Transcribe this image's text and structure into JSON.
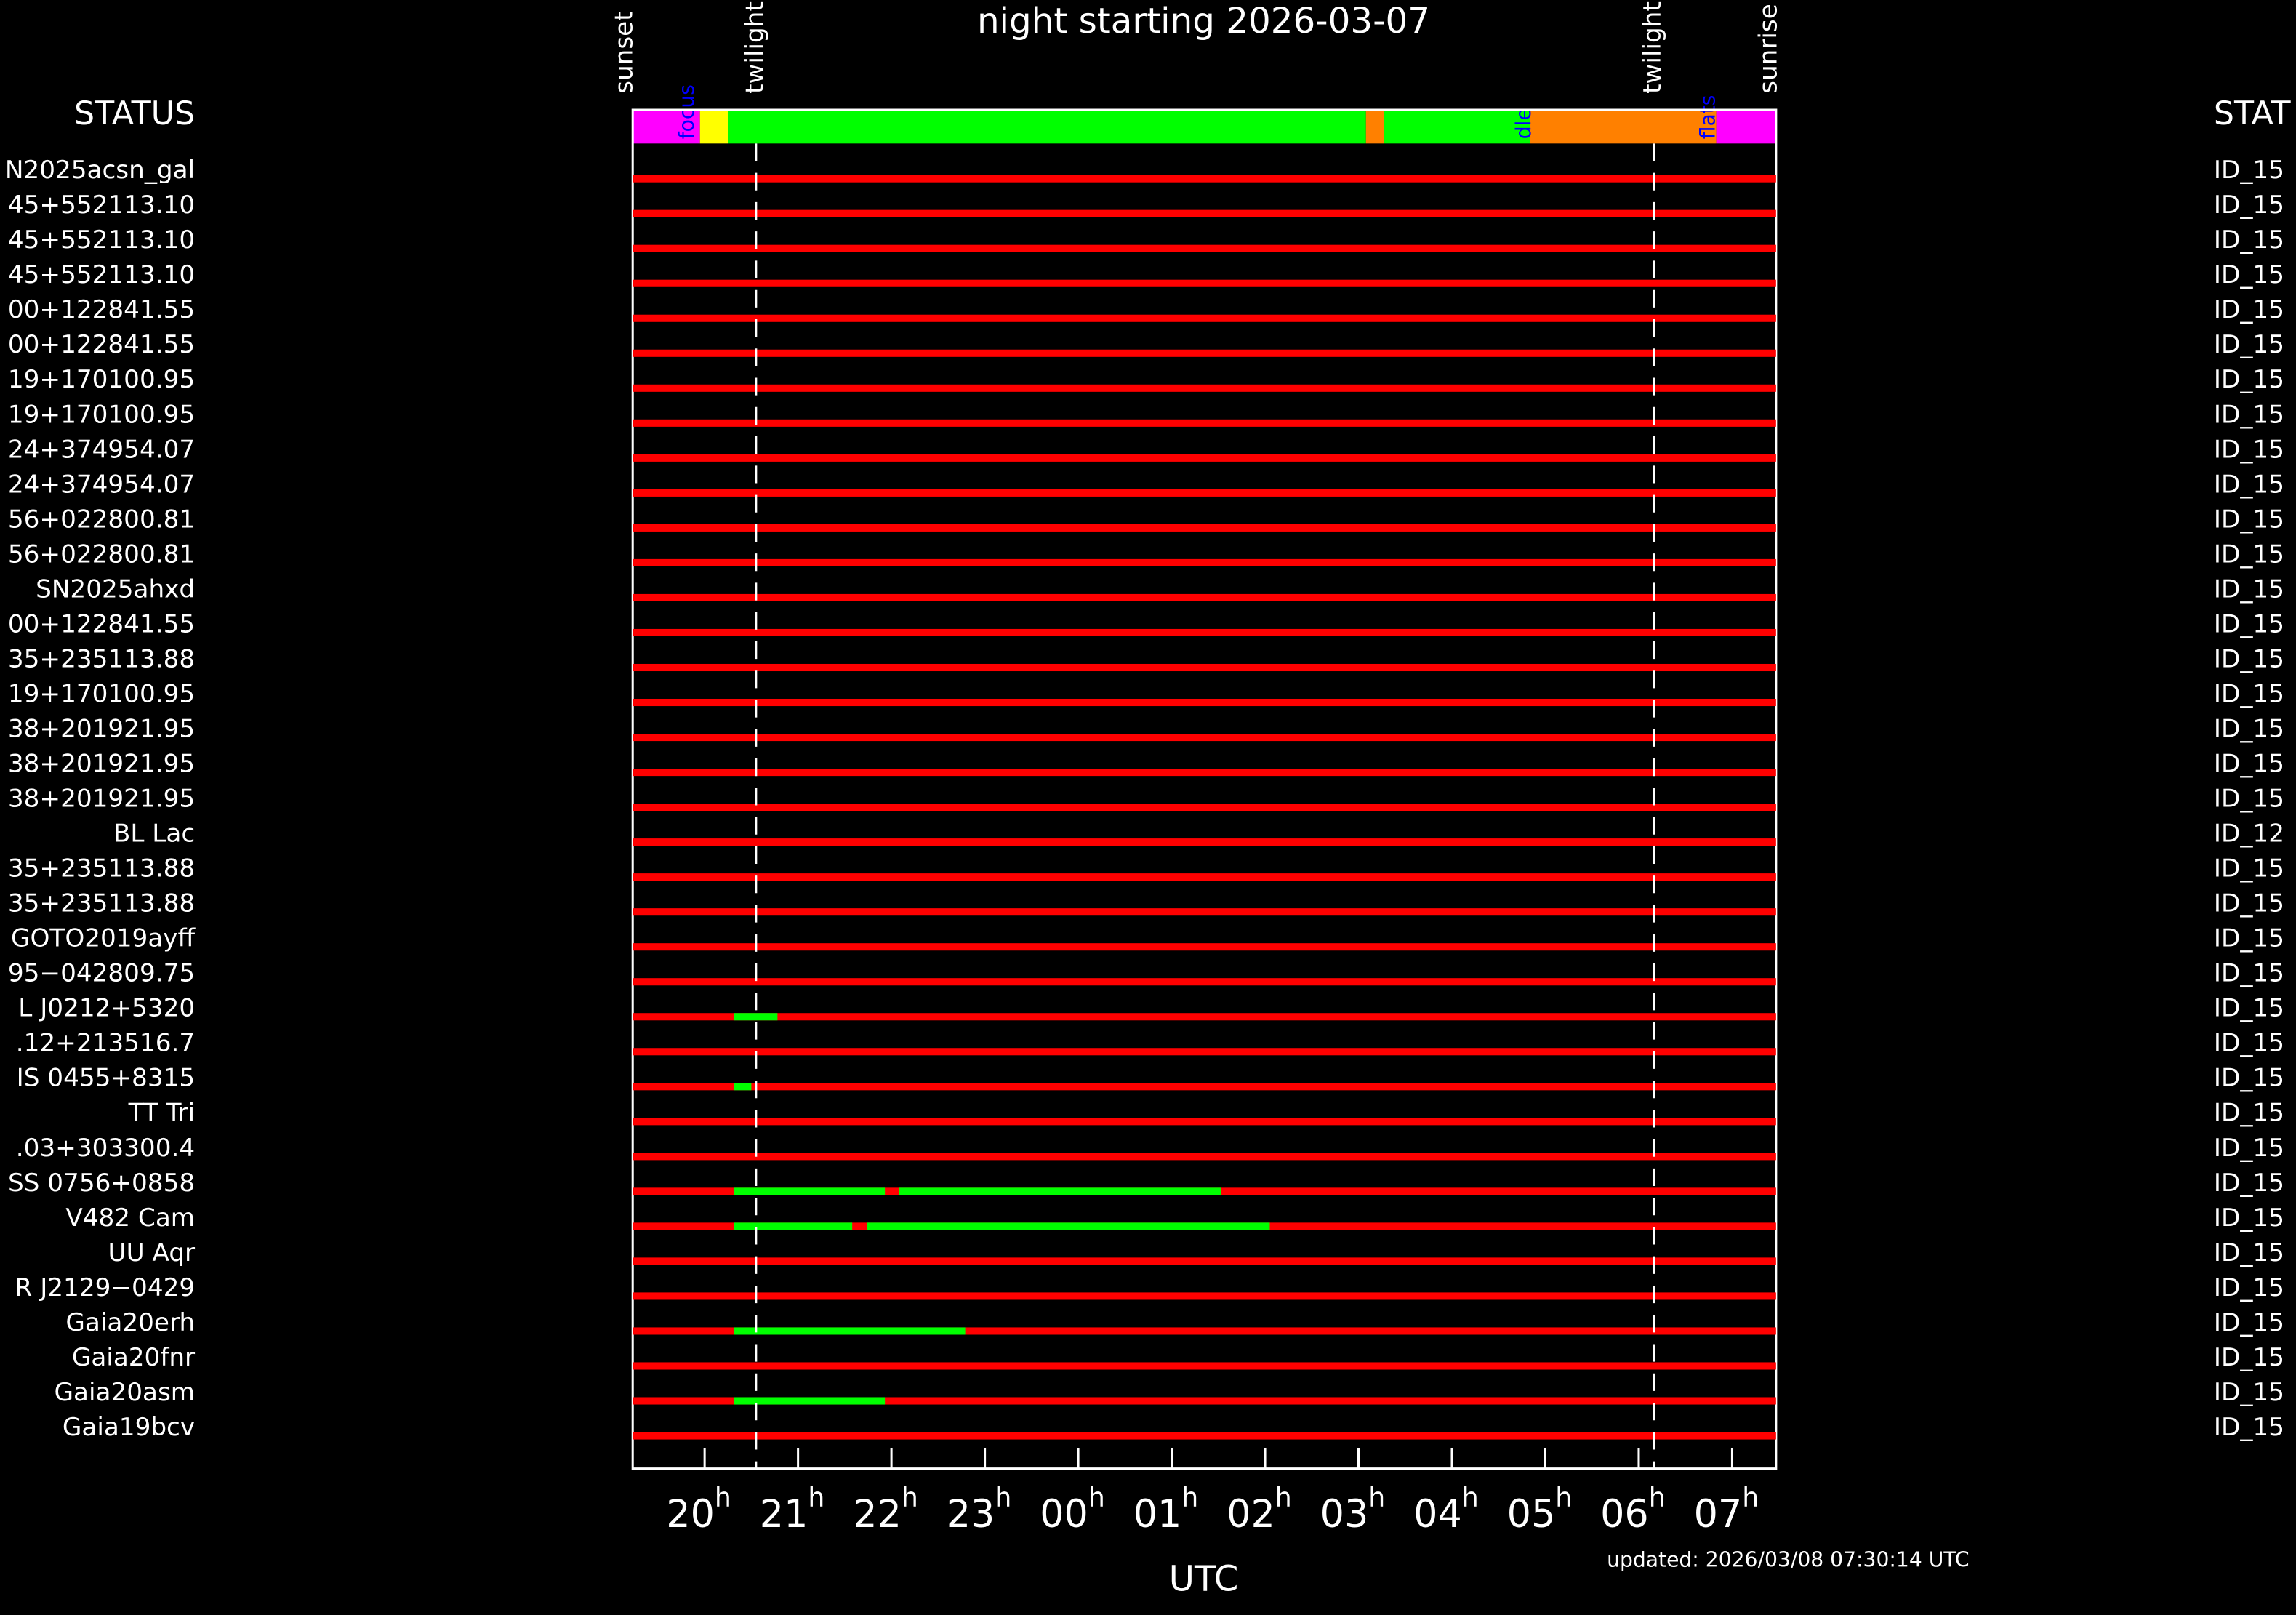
{
  "chart_data": {
    "type": "gantt",
    "title": "night starting 2026-03-07",
    "x_label": "UTC",
    "footer": "updated: 2026/03/08 07:30:14 UTC",
    "status_header": "STATUS",
    "status_header_right": "STAT",
    "xlim": [
      19.23,
      31.47
    ],
    "xticks": [
      {
        "value": 20,
        "label": "20"
      },
      {
        "value": 21,
        "label": "21"
      },
      {
        "value": 22,
        "label": "22"
      },
      {
        "value": 23,
        "label": "23"
      },
      {
        "value": 24,
        "label": "00"
      },
      {
        "value": 25,
        "label": "01"
      },
      {
        "value": 26,
        "label": "02"
      },
      {
        "value": 27,
        "label": "03"
      },
      {
        "value": 28,
        "label": "04"
      },
      {
        "value": 29,
        "label": "05"
      },
      {
        "value": 30,
        "label": "06"
      },
      {
        "value": 31,
        "label": "07"
      }
    ],
    "tick_unit": "h",
    "bar_color": "#ff0000",
    "active_color": "#00ff00",
    "events": [
      {
        "name": "sunset",
        "x": 19.15,
        "dashed": false
      },
      {
        "name": "twilight",
        "x": 20.55,
        "dashed": true
      },
      {
        "name": "twilight",
        "x": 30.16,
        "dashed": true
      },
      {
        "name": "sunrise",
        "x": 31.4,
        "dashed": false
      }
    ],
    "status": [
      {
        "start": 19.23,
        "end": 19.95,
        "color": "#ff00ff"
      },
      {
        "start": 19.95,
        "end": 20.25,
        "color": "#ffff00"
      },
      {
        "start": 20.25,
        "end": 27.08,
        "color": "#00ff00"
      },
      {
        "start": 27.08,
        "end": 27.27,
        "color": "#ff8000"
      },
      {
        "start": 27.27,
        "end": 28.84,
        "color": "#00ff00"
      },
      {
        "start": 28.84,
        "end": 30.83,
        "color": "#ff8000"
      },
      {
        "start": 30.83,
        "end": 31.47,
        "color": "#ff00ff"
      }
    ],
    "status_labels": [
      {
        "text": "focus",
        "x": 19.82
      },
      {
        "text": "dle",
        "x": 28.78
      },
      {
        "text": "flats",
        "x": 30.75
      }
    ],
    "rows": [
      {
        "name": "N2025acsn_gal",
        "id": "ID_15",
        "segments": []
      },
      {
        "name": "45+552113.10",
        "id": "ID_15",
        "segments": []
      },
      {
        "name": "45+552113.10",
        "id": "ID_15",
        "segments": []
      },
      {
        "name": "45+552113.10",
        "id": "ID_15",
        "segments": []
      },
      {
        "name": "00+122841.55",
        "id": "ID_15",
        "segments": []
      },
      {
        "name": "00+122841.55",
        "id": "ID_15",
        "segments": []
      },
      {
        "name": "19+170100.95",
        "id": "ID_15",
        "segments": []
      },
      {
        "name": "19+170100.95",
        "id": "ID_15",
        "segments": []
      },
      {
        "name": "24+374954.07",
        "id": "ID_15",
        "segments": []
      },
      {
        "name": "24+374954.07",
        "id": "ID_15",
        "segments": []
      },
      {
        "name": "56+022800.81",
        "id": "ID_15",
        "segments": []
      },
      {
        "name": "56+022800.81",
        "id": "ID_15",
        "segments": []
      },
      {
        "name": "SN2025ahxd",
        "id": "ID_15",
        "segments": []
      },
      {
        "name": "00+122841.55",
        "id": "ID_15",
        "segments": []
      },
      {
        "name": "35+235113.88",
        "id": "ID_15",
        "segments": []
      },
      {
        "name": "19+170100.95",
        "id": "ID_15",
        "segments": []
      },
      {
        "name": "38+201921.95",
        "id": "ID_15",
        "segments": []
      },
      {
        "name": "38+201921.95",
        "id": "ID_15",
        "segments": []
      },
      {
        "name": "38+201921.95",
        "id": "ID_15",
        "segments": []
      },
      {
        "name": "BL Lac",
        "id": "ID_12",
        "segments": []
      },
      {
        "name": "35+235113.88",
        "id": "ID_15",
        "segments": []
      },
      {
        "name": "35+235113.88",
        "id": "ID_15",
        "segments": []
      },
      {
        "name": "GOTO2019ayff",
        "id": "ID_15",
        "segments": []
      },
      {
        "name": "95−042809.75",
        "id": "ID_15",
        "segments": []
      },
      {
        "name": "L J0212+5320",
        "id": "ID_15",
        "segments": [
          [
            20.31,
            20.78
          ]
        ]
      },
      {
        "name": ".12+213516.7",
        "id": "ID_15",
        "segments": []
      },
      {
        "name": "IS 0455+8315",
        "id": "ID_15",
        "segments": [
          [
            20.31,
            20.5
          ]
        ]
      },
      {
        "name": "TT Tri",
        "id": "ID_15",
        "segments": []
      },
      {
        "name": ".03+303300.4",
        "id": "ID_15",
        "segments": []
      },
      {
        "name": "SS 0756+0858",
        "id": "ID_15",
        "segments": [
          [
            20.31,
            21.93
          ],
          [
            22.08,
            25.53
          ]
        ]
      },
      {
        "name": "V482 Cam",
        "id": "ID_15",
        "segments": [
          [
            20.31,
            21.58
          ],
          [
            21.74,
            26.05
          ]
        ]
      },
      {
        "name": "UU Aqr",
        "id": "ID_15",
        "segments": []
      },
      {
        "name": "R J2129−0429",
        "id": "ID_15",
        "segments": []
      },
      {
        "name": "Gaia20erh",
        "id": "ID_15",
        "segments": [
          [
            20.31,
            22.79
          ]
        ]
      },
      {
        "name": "Gaia20fnr",
        "id": "ID_15",
        "segments": []
      },
      {
        "name": "Gaia20asm",
        "id": "ID_15",
        "segments": [
          [
            20.31,
            21.93
          ]
        ]
      },
      {
        "name": "Gaia19bcv",
        "id": "ID_15",
        "segments": []
      }
    ]
  }
}
